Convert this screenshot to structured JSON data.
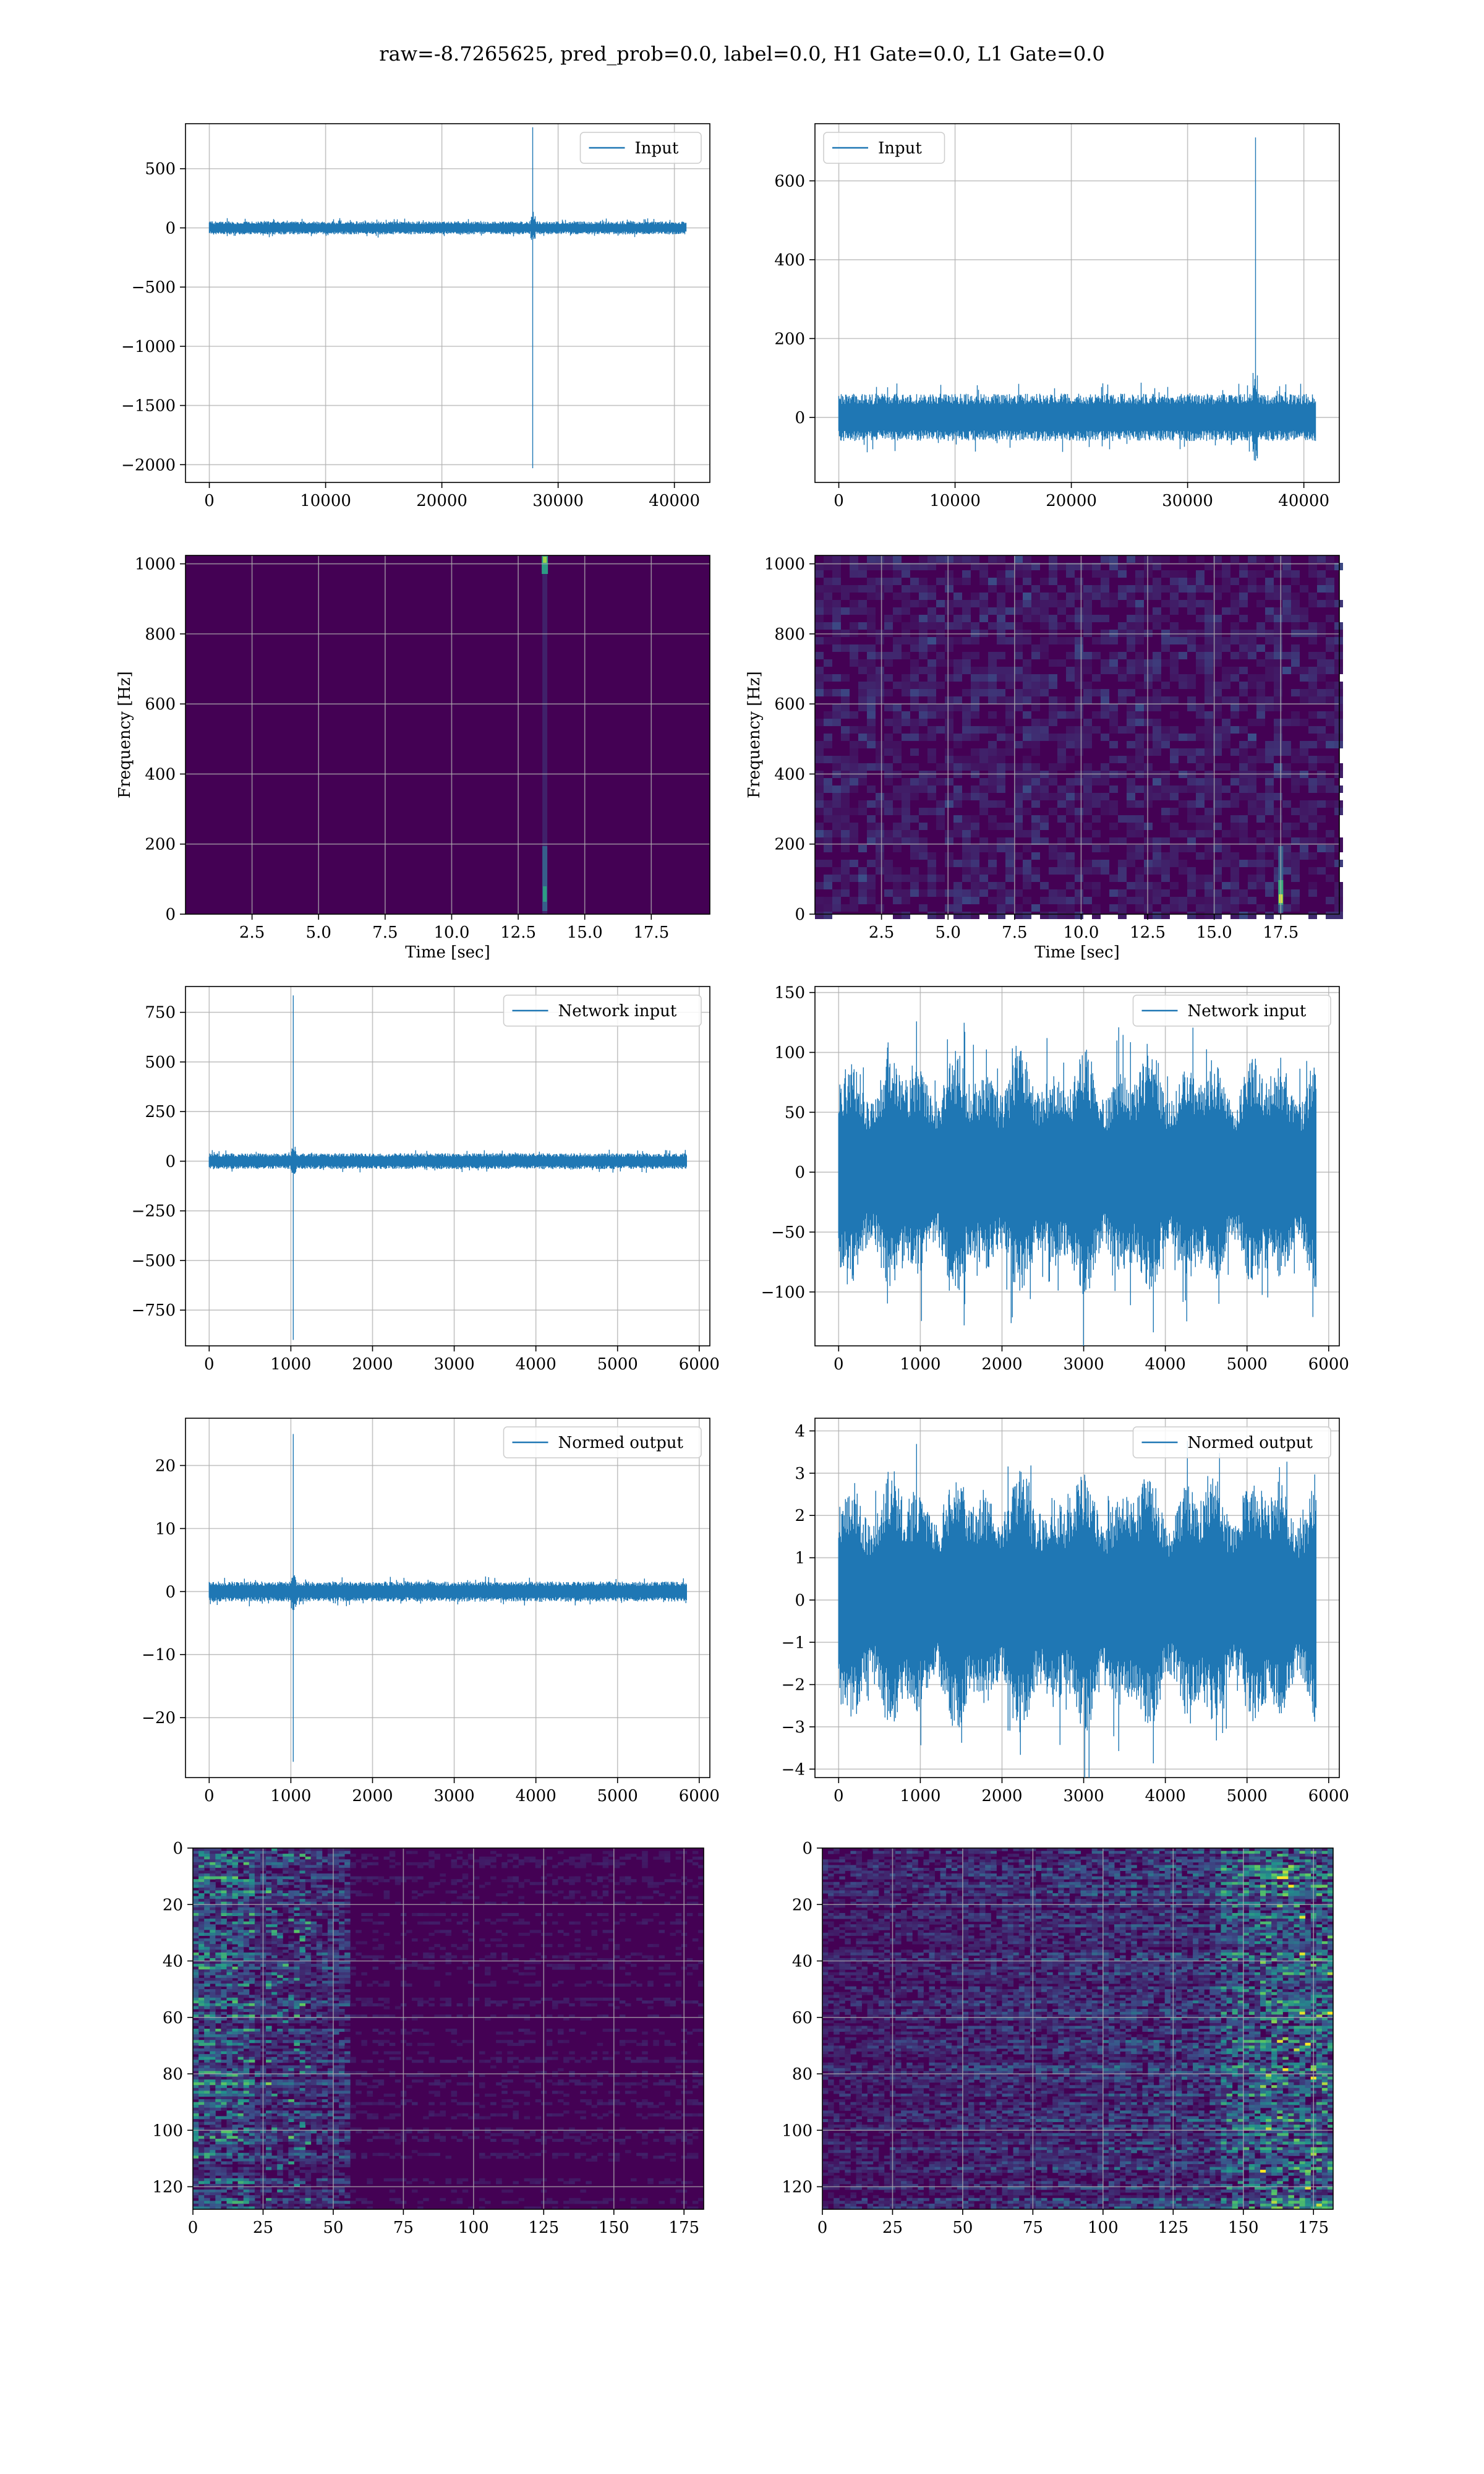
{
  "suptitle": "raw=-8.7265625, pred_prob=0.0, label=0.0, H1 Gate=0.0, L1 Gate=0.0",
  "colors": {
    "line": "#1f77b4",
    "grid": "#b0b0b0",
    "viridis_low": "#440154",
    "viridis_high": "#fde725"
  },
  "chart_data": [
    {
      "id": "p1",
      "type": "line",
      "legend": "Input",
      "legend_position": "upper right",
      "xlim": [
        -2050,
        43050
      ],
      "ylim": [
        -2150,
        880
      ],
      "xticks": [
        0,
        10000,
        20000,
        30000,
        40000
      ],
      "yticks": [
        -2000,
        -1500,
        -1000,
        -500,
        0,
        500
      ],
      "xticklabels": [
        "0",
        "10000",
        "20000",
        "30000",
        "40000"
      ],
      "yticklabels": [
        "−2000",
        "−1500",
        "−1000",
        "−500",
        "0",
        "500"
      ],
      "n": 40960,
      "noise_amp": 55,
      "spike_x": 27800,
      "spike_max": 850,
      "spike_min": -2030,
      "grid": true
    },
    {
      "id": "p2",
      "type": "line",
      "legend": "Input",
      "legend_position": "upper left",
      "xlim": [
        -2050,
        43050
      ],
      "ylim": [
        -165,
        745
      ],
      "xticks": [
        0,
        10000,
        20000,
        30000,
        40000
      ],
      "yticks": [
        0,
        200,
        400,
        600
      ],
      "xticklabels": [
        "0",
        "10000",
        "20000",
        "30000",
        "40000"
      ],
      "yticklabels": [
        "0",
        "200",
        "400",
        "600"
      ],
      "n": 40960,
      "noise_amp": 60,
      "spike_x": 35800,
      "spike_max": 710,
      "spike_min": -110,
      "grid": true
    },
    {
      "id": "p3",
      "type": "heatmap",
      "xlabel": "Time [sec]",
      "ylabel": "Frequency [Hz]",
      "xlim": [
        0,
        19.7
      ],
      "ylim": [
        0,
        1024
      ],
      "xticks": [
        2.5,
        5.0,
        7.5,
        10.0,
        12.5,
        15.0,
        17.5
      ],
      "yticks": [
        0,
        200,
        400,
        600,
        800,
        1000
      ],
      "xticklabels": [
        "2.5",
        "5.0",
        "7.5",
        "10.0",
        "12.5",
        "15.0",
        "17.5"
      ],
      "yticklabels": [
        "0",
        "200",
        "400",
        "600",
        "800",
        "1000"
      ],
      "background": "#440154",
      "event_time": 13.5,
      "noise": false,
      "grid": true
    },
    {
      "id": "p4",
      "type": "heatmap",
      "xlabel": "Time [sec]",
      "ylabel": "Frequency [Hz]",
      "xlim": [
        0,
        19.7
      ],
      "ylim": [
        0,
        1024
      ],
      "xticks": [
        2.5,
        5.0,
        7.5,
        10.0,
        12.5,
        15.0,
        17.5
      ],
      "yticks": [
        0,
        200,
        400,
        600,
        800,
        1000
      ],
      "xticklabels": [
        "2.5",
        "5.0",
        "7.5",
        "10.0",
        "12.5",
        "15.0",
        "17.5"
      ],
      "yticklabels": [
        "0",
        "200",
        "400",
        "600",
        "800",
        "1000"
      ],
      "background": "#440154",
      "event_time": 17.5,
      "noise": true,
      "grid": true
    },
    {
      "id": "p5",
      "type": "line",
      "legend": "Network input",
      "legend_position": "upper right",
      "xlim": [
        -290,
        6130
      ],
      "ylim": [
        -930,
        880
      ],
      "xticks": [
        0,
        1000,
        2000,
        3000,
        4000,
        5000,
        6000
      ],
      "yticks": [
        -750,
        -500,
        -250,
        0,
        250,
        500,
        750
      ],
      "xticklabels": [
        "0",
        "1000",
        "2000",
        "3000",
        "4000",
        "5000",
        "6000"
      ],
      "yticklabels": [
        "−750",
        "−500",
        "−250",
        "0",
        "250",
        "500",
        "750"
      ],
      "n": 5840,
      "noise_amp": 40,
      "spike_x": 1030,
      "spike_max": 835,
      "spike_min": -900,
      "grid": true
    },
    {
      "id": "p6",
      "type": "line",
      "legend": "Network input",
      "legend_position": "upper right",
      "xlim": [
        -290,
        6130
      ],
      "ylim": [
        -145,
        155
      ],
      "xticks": [
        0,
        1000,
        2000,
        3000,
        4000,
        5000,
        6000
      ],
      "yticks": [
        -100,
        -50,
        0,
        50,
        100,
        150
      ],
      "xticklabels": [
        "0",
        "1000",
        "2000",
        "3000",
        "4000",
        "5000",
        "6000"
      ],
      "yticklabels": [
        "−100",
        "−50",
        "0",
        "50",
        "100",
        "150"
      ],
      "n": 5840,
      "noise_amp": 95,
      "spike_x": null,
      "grid": true
    },
    {
      "id": "p7",
      "type": "line",
      "legend": "Normed output",
      "legend_position": "upper right",
      "xlim": [
        -290,
        6130
      ],
      "ylim": [
        -29.5,
        27.5
      ],
      "xticks": [
        0,
        1000,
        2000,
        3000,
        4000,
        5000,
        6000
      ],
      "yticks": [
        -20,
        -10,
        0,
        10,
        20
      ],
      "xticklabels": [
        "0",
        "1000",
        "2000",
        "3000",
        "4000",
        "5000",
        "6000"
      ],
      "yticklabels": [
        "−20",
        "−10",
        "0",
        "10",
        "20"
      ],
      "n": 5840,
      "noise_amp": 1.6,
      "spike_x": 1030,
      "spike_max": 25,
      "spike_min": -27,
      "grid": true
    },
    {
      "id": "p8",
      "type": "line",
      "legend": "Normed output",
      "legend_position": "upper right",
      "xlim": [
        -290,
        6130
      ],
      "ylim": [
        -4.2,
        4.3
      ],
      "xticks": [
        0,
        1000,
        2000,
        3000,
        4000,
        5000,
        6000
      ],
      "yticks": [
        -4,
        -3,
        -2,
        -1,
        0,
        1,
        2,
        3,
        4
      ],
      "xticklabels": [
        "0",
        "1000",
        "2000",
        "3000",
        "4000",
        "5000",
        "6000"
      ],
      "yticklabels": [
        "−4",
        "−3",
        "−2",
        "−1",
        "0",
        "1",
        "2",
        "3",
        "4"
      ],
      "n": 5840,
      "noise_amp": 2.9,
      "spike_x": null,
      "grid": true
    },
    {
      "id": "p9",
      "type": "heatmap",
      "xlim": [
        0,
        182
      ],
      "ylim": [
        128,
        0
      ],
      "xticks": [
        0,
        25,
        50,
        75,
        100,
        125,
        150,
        175
      ],
      "yticks": [
        0,
        20,
        40,
        60,
        80,
        100,
        120
      ],
      "xticklabels": [
        "0",
        "25",
        "50",
        "75",
        "100",
        "125",
        "150",
        "175"
      ],
      "yticklabels": [
        "0",
        "20",
        "40",
        "60",
        "80",
        "100",
        "120"
      ],
      "background": "#440154",
      "activity": "left",
      "grid": true
    },
    {
      "id": "p10",
      "type": "heatmap",
      "xlim": [
        0,
        182
      ],
      "ylim": [
        128,
        0
      ],
      "xticks": [
        0,
        25,
        50,
        75,
        100,
        125,
        150,
        175
      ],
      "yticks": [
        0,
        20,
        40,
        60,
        80,
        100,
        120
      ],
      "xticklabels": [
        "0",
        "25",
        "50",
        "75",
        "100",
        "125",
        "150",
        "175"
      ],
      "yticklabels": [
        "0",
        "20",
        "40",
        "60",
        "80",
        "100",
        "120"
      ],
      "background": "#440154",
      "activity": "right",
      "grid": true
    }
  ]
}
